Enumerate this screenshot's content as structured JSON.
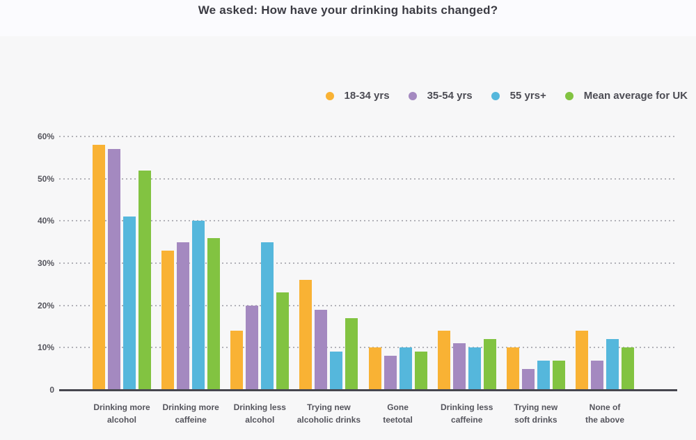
{
  "chart_data": {
    "type": "bar",
    "title": "We asked: How have your drinking habits changed?",
    "categories": [
      "Drinking more\nalcohol",
      "Drinking more\ncaffeine",
      "Drinking less\nalcohol",
      "Trying new\nalcoholic drinks",
      "Gone\nteetotal",
      "Drinking less\ncaffeine",
      "Trying new\nsoft drinks",
      "None of\nthe above"
    ],
    "series": [
      {
        "name": "18-34 yrs",
        "color": "#F9B234",
        "values": [
          58,
          33,
          14,
          26,
          10,
          14,
          10,
          14
        ]
      },
      {
        "name": "35-54 yrs",
        "color": "#A489C0",
        "values": [
          57,
          35,
          20,
          19,
          8,
          11,
          5,
          7
        ]
      },
      {
        "name": "55 yrs+",
        "color": "#55B7DC",
        "values": [
          41,
          40,
          35,
          9,
          10,
          10,
          7,
          12
        ]
      },
      {
        "name": "Mean average for UK",
        "color": "#82C341",
        "values": [
          52,
          36,
          23,
          17,
          9,
          12,
          7,
          10
        ]
      }
    ],
    "yticks": [
      {
        "value": 60,
        "label": "60%"
      },
      {
        "value": 50,
        "label": "50%"
      },
      {
        "value": 40,
        "label": "40%"
      },
      {
        "value": 30,
        "label": "30%"
      },
      {
        "value": 20,
        "label": "20%"
      },
      {
        "value": 10,
        "label": "10%"
      },
      {
        "value": 0,
        "label": "0"
      }
    ],
    "ylim": [
      0,
      60
    ],
    "grid": "dotted",
    "legend_position": "top-right",
    "colors": {
      "title_text": "#3b3b43",
      "axis_text": "#55555d",
      "axis_line": "#47474f",
      "header_bg": "#fbfbfe",
      "chart_bg": "#f7f7f8"
    }
  }
}
